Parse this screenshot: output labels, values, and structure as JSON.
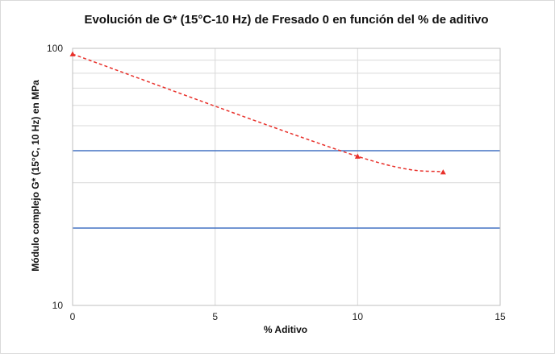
{
  "chart_data": {
    "type": "scatter",
    "title": "Evolución de G* (15°C-10 Hz) de Fresado 0 en función del % de aditivo",
    "xlabel": "% Aditivo",
    "ylabel": "Módulo complejo G* (15°C, 10 Hz) en MPa",
    "xlim": [
      0,
      15
    ],
    "ylim": [
      10,
      100
    ],
    "y_scale": "log",
    "x_ticks": [
      0,
      5,
      10,
      15
    ],
    "x_tick_labels": [
      "0",
      "5",
      "10",
      "15"
    ],
    "y_tick_labels": [
      {
        "value": 100,
        "label": "100"
      },
      {
        "value": 10,
        "label": "10"
      }
    ],
    "y_minor_gridlines": [
      20,
      30,
      40,
      50,
      60,
      70,
      80,
      90
    ],
    "grid": true,
    "series": [
      {
        "marker": "triangle",
        "line_style": "dashed",
        "color": "#e8302a",
        "x": [
          0,
          10,
          13
        ],
        "y": [
          95,
          38,
          33
        ]
      }
    ],
    "reference_lines": [
      {
        "orientation": "horizontal",
        "y": 40,
        "color": "#4472c4"
      },
      {
        "orientation": "horizontal",
        "y": 20,
        "color": "#4472c4"
      }
    ]
  }
}
